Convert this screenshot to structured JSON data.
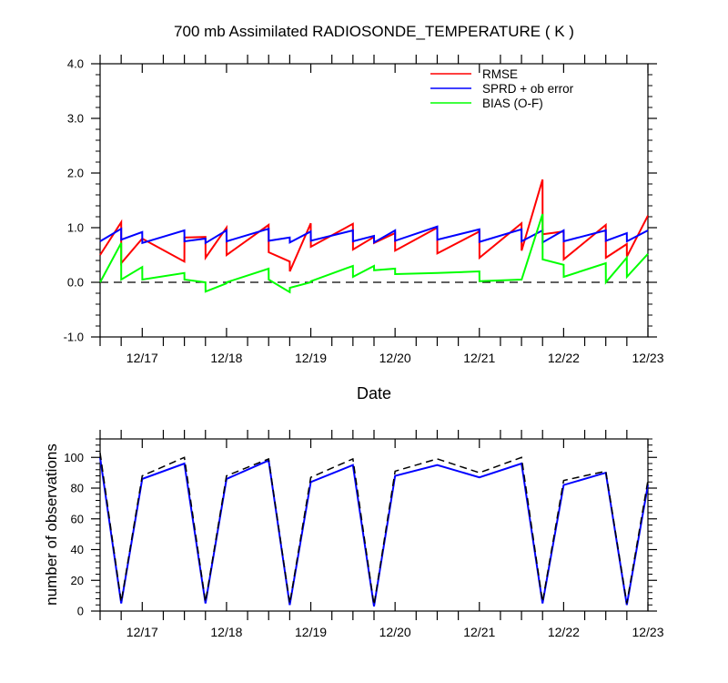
{
  "chart_data": [
    {
      "type": "line",
      "title": "700 mb Assimilated RADIOSONDE_TEMPERATURE ( K )",
      "xlabel": "Date",
      "ylabel": "",
      "ylim": [
        -1.0,
        4.0
      ],
      "xlim": [
        16.5,
        23.0
      ],
      "yticks": [
        -1.0,
        0.0,
        1.0,
        2.0,
        3.0,
        4.0
      ],
      "ytick_labels": [
        "-1.0",
        "0.0",
        "1.0",
        "2.0",
        "3.0",
        "4.0"
      ],
      "xticks": [
        17,
        18,
        19,
        20,
        21,
        22,
        23
      ],
      "xtick_labels": [
        "12/17",
        "12/18",
        "12/19",
        "12/20",
        "12/21",
        "12/22",
        "12/23"
      ],
      "legend_position": "top-right",
      "reference_line": {
        "y": 0.0,
        "style": "dashed",
        "color": "#000000"
      },
      "series": [
        {
          "name": "RMSE",
          "color": "#ff0000",
          "x": [
            16.5,
            16.75,
            16.751,
            17.0,
            17.5,
            17.501,
            17.75,
            17.751,
            18.0,
            18.001,
            18.5,
            18.501,
            18.75,
            18.751,
            19.0,
            19.001,
            19.5,
            19.501,
            19.75,
            19.751,
            20.0,
            20.001,
            20.5,
            20.501,
            21.0,
            21.001,
            21.5,
            21.501,
            21.75,
            21.751,
            22.0,
            22.001,
            22.5,
            22.501,
            22.75,
            22.751,
            23.0
          ],
          "y": [
            0.5,
            1.1,
            0.35,
            0.8,
            0.38,
            0.82,
            0.83,
            0.45,
            1.0,
            0.5,
            1.05,
            0.55,
            0.38,
            0.2,
            1.08,
            0.65,
            1.07,
            0.6,
            0.83,
            0.72,
            0.9,
            0.58,
            1.0,
            0.53,
            0.93,
            0.45,
            1.08,
            0.58,
            1.88,
            0.88,
            0.93,
            0.42,
            1.05,
            0.45,
            0.7,
            0.47,
            1.22
          ]
        },
        {
          "name": "SPRD + ob error",
          "color": "#0000ff",
          "x": [
            16.5,
            16.75,
            16.751,
            17.0,
            17.001,
            17.5,
            17.501,
            17.75,
            17.751,
            18.0,
            18.001,
            18.5,
            18.501,
            18.75,
            18.751,
            19.0,
            19.001,
            19.5,
            19.501,
            19.75,
            19.751,
            20.0,
            20.001,
            20.5,
            20.501,
            21.0,
            21.001,
            21.5,
            21.501,
            21.75,
            21.751,
            22.0,
            22.001,
            22.5,
            22.501,
            22.75,
            22.751,
            23.0
          ],
          "y": [
            0.75,
            0.98,
            0.78,
            0.92,
            0.72,
            0.95,
            0.75,
            0.8,
            0.72,
            0.95,
            0.75,
            0.98,
            0.76,
            0.82,
            0.73,
            0.93,
            0.76,
            0.95,
            0.75,
            0.85,
            0.73,
            0.95,
            0.76,
            1.02,
            0.78,
            0.97,
            0.74,
            0.97,
            0.75,
            0.95,
            0.73,
            0.95,
            0.75,
            0.95,
            0.76,
            0.9,
            0.75,
            0.95
          ]
        },
        {
          "name": "BIAS (O-F)",
          "color": "#00ff00",
          "x": [
            16.5,
            16.75,
            16.751,
            17.0,
            17.001,
            17.5,
            17.501,
            17.75,
            17.751,
            18.0,
            18.001,
            18.5,
            18.501,
            18.75,
            18.751,
            19.0,
            19.001,
            19.5,
            19.501,
            19.75,
            19.751,
            20.0,
            20.001,
            20.5,
            20.501,
            21.0,
            21.001,
            21.5,
            21.501,
            21.75,
            21.751,
            22.0,
            22.001,
            22.5,
            22.501,
            22.75,
            22.751,
            23.0
          ],
          "y": [
            0.0,
            0.72,
            0.05,
            0.28,
            0.05,
            0.17,
            0.05,
            0.0,
            -0.17,
            -0.02,
            0.0,
            0.25,
            0.05,
            -0.18,
            -0.1,
            0.0,
            0.02,
            0.3,
            0.1,
            0.3,
            0.22,
            0.25,
            0.15,
            0.17,
            0.17,
            0.2,
            0.02,
            0.05,
            0.05,
            1.25,
            0.42,
            0.32,
            0.1,
            0.35,
            0.0,
            0.45,
            0.1,
            0.52
          ]
        }
      ]
    },
    {
      "type": "line",
      "title": "",
      "xlabel": "",
      "ylabel": "number of observations",
      "ylim": [
        0,
        112
      ],
      "xlim": [
        16.5,
        23.0
      ],
      "yticks": [
        0,
        20,
        40,
        60,
        80,
        100
      ],
      "ytick_labels": [
        "0",
        "20",
        "40",
        "60",
        "80",
        "100"
      ],
      "xticks": [
        17,
        18,
        19,
        20,
        21,
        22,
        23
      ],
      "xtick_labels": [
        "12/17",
        "12/18",
        "12/19",
        "12/20",
        "12/21",
        "12/22",
        "12/23"
      ],
      "series": [
        {
          "color": "#0000ff",
          "style": "solid",
          "x": [
            16.5,
            16.75,
            17.0,
            17.5,
            17.75,
            18.0,
            18.5,
            18.75,
            19.0,
            19.5,
            19.75,
            20.0,
            20.5,
            21.0,
            21.5,
            21.75,
            22.0,
            22.5,
            22.75,
            23.0
          ],
          "y": [
            100,
            5,
            86,
            96,
            5,
            86,
            98,
            4,
            84,
            95,
            3,
            88,
            95,
            87,
            96,
            5,
            82,
            90,
            4,
            82
          ]
        },
        {
          "color": "#000000",
          "style": "dashed",
          "x": [
            16.5,
            16.75,
            17.0,
            17.5,
            17.75,
            18.0,
            18.5,
            18.75,
            19.0,
            19.5,
            19.75,
            20.0,
            20.5,
            21.0,
            21.5,
            21.75,
            22.0,
            22.5,
            22.75,
            23.0
          ],
          "y": [
            103,
            6,
            88,
            100,
            6,
            88,
            99,
            5,
            87,
            99,
            4,
            91,
            99,
            90,
            100,
            6,
            85,
            91,
            5,
            85
          ]
        }
      ]
    }
  ]
}
